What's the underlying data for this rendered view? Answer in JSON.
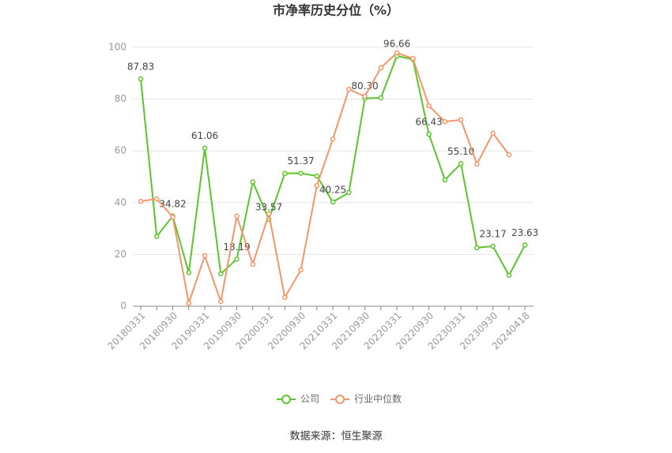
{
  "chart_data": {
    "type": "line",
    "title": "市净率历史分位（%）",
    "source": "数据来源：恒生聚源",
    "categories": [
      "20180331",
      null,
      "20180930",
      null,
      "20190331",
      null,
      "20190930",
      null,
      "20200331",
      null,
      "20200930",
      null,
      "20210331",
      null,
      "20210930",
      null,
      "20220331",
      null,
      "20220930",
      null,
      "20230331",
      null,
      "20230930",
      null,
      "20240418"
    ],
    "series": [
      {
        "name": "公司",
        "color": "#5cc52b",
        "values": [
          87.83,
          27,
          34.82,
          13,
          61.06,
          12.5,
          18.19,
          48,
          33.57,
          51.3,
          51.37,
          50.3,
          40.25,
          43.9,
          80.3,
          80.5,
          96.66,
          95.4,
          66.43,
          48.8,
          55.1,
          22.6,
          23.17,
          11.9,
          23.63
        ],
        "value_labels": [
          "87.83",
          null,
          "34.82",
          null,
          "61.06",
          null,
          "18.19",
          null,
          "33.57",
          null,
          "51.37",
          null,
          "40.25",
          null,
          "80.30",
          null,
          "96.66",
          null,
          "66.43",
          null,
          "55.10",
          null,
          "23.17",
          null,
          "23.63"
        ]
      },
      {
        "name": "行业中位数",
        "color": "#f4956a",
        "values": [
          40.5,
          41.5,
          34.5,
          1.2,
          19.5,
          1.8,
          34.8,
          16.2,
          35.7,
          3.4,
          14,
          46.6,
          64.6,
          83.8,
          81.1,
          92.1,
          97.9,
          95.7,
          77.4,
          71.3,
          72,
          54.9,
          66.8,
          58.5,
          null
        ]
      }
    ],
    "ylim": [
      0,
      100
    ],
    "yticks": [
      0,
      20,
      40,
      60,
      80,
      100
    ],
    "grid": true,
    "legend": "bottom"
  }
}
